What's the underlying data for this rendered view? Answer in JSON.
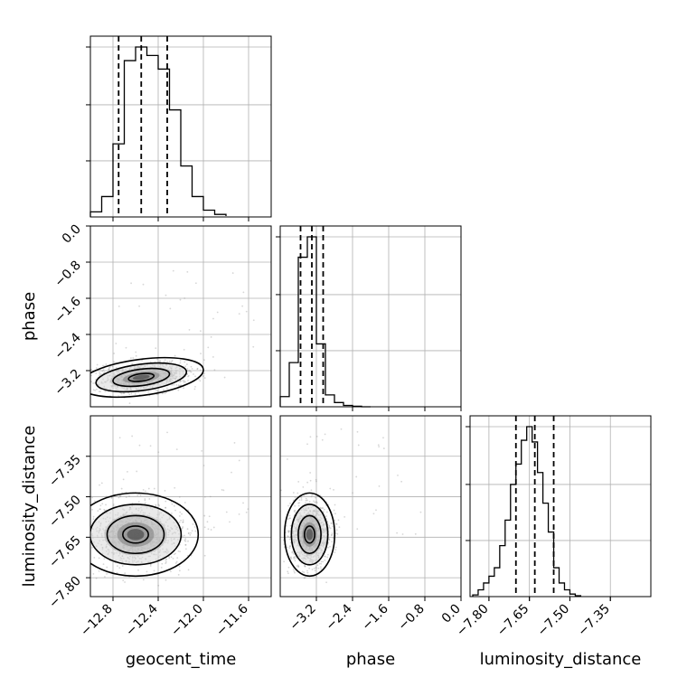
{
  "chart_data": {
    "type": "corner",
    "parameters": [
      {
        "name": "geocent_time",
        "range": [
          -13.0,
          -11.4
        ],
        "ticks": [
          "−12.8",
          "−12.4",
          "−12.0",
          "−11.6"
        ],
        "tick_values": [
          -12.8,
          -12.4,
          -12.0,
          -11.6
        ],
        "quantiles": [
          -12.75,
          -12.55,
          -12.32
        ],
        "hist_bins": [
          -13.0,
          -12.9,
          -12.8,
          -12.7,
          -12.6,
          -12.5,
          -12.4,
          -12.3,
          -12.2,
          -12.1,
          -12.0,
          -11.9,
          -11.8
        ],
        "hist_counts": [
          0.03,
          0.12,
          0.43,
          0.92,
          1.0,
          0.95,
          0.87,
          0.63,
          0.3,
          0.12,
          0.04,
          0.015,
          0.005
        ],
        "hist_label": "geocent_time"
      },
      {
        "name": "phase",
        "range": [
          -4.0,
          0.0
        ],
        "ticks": [
          "−3.2",
          "−2.4",
          "−1.6",
          "−0.8",
          "0.0"
        ],
        "tick_values": [
          -3.2,
          -2.4,
          -1.6,
          -0.8,
          0.0
        ],
        "y_ticks": [
          "0.0",
          "−0.8",
          "−1.6",
          "−2.4",
          "−3.2"
        ],
        "y_tick_values": [
          0.0,
          -0.8,
          -1.6,
          -2.4,
          -3.2
        ],
        "quantiles": [
          -3.55,
          -3.3,
          -3.05
        ],
        "hist_bins": [
          -4.0,
          -3.8,
          -3.6,
          -3.4,
          -3.2,
          -3.0,
          -2.8,
          -2.6,
          -2.4,
          -2.2,
          -2.0
        ],
        "hist_counts": [
          0.06,
          0.26,
          0.88,
          1.0,
          0.37,
          0.07,
          0.025,
          0.008,
          0.003,
          0.0
        ],
        "hist_label": "phase"
      },
      {
        "name": "luminosity_distance",
        "range": [
          -7.87,
          -7.2
        ],
        "ticks": [
          "−7.80",
          "−7.65",
          "−7.50",
          "−7.35"
        ],
        "tick_values": [
          -7.8,
          -7.65,
          -7.5,
          -7.35
        ],
        "y_ticks": [
          "−7.35",
          "−7.50",
          "−7.65",
          "−7.80"
        ],
        "y_tick_values": [
          -7.35,
          -7.5,
          -7.65,
          -7.8
        ],
        "quantiles": [
          -7.7,
          -7.63,
          -7.56
        ],
        "hist_bins": [
          -7.86,
          -7.84,
          -7.82,
          -7.8,
          -7.78,
          -7.76,
          -7.74,
          -7.72,
          -7.7,
          -7.68,
          -7.66,
          -7.64,
          -7.62,
          -7.6,
          -7.58,
          -7.56,
          -7.54,
          -7.52,
          -7.5,
          -7.48,
          -7.46
        ],
        "hist_counts": [
          0.01,
          0.04,
          0.08,
          0.12,
          0.17,
          0.3,
          0.45,
          0.66,
          0.78,
          0.92,
          1.0,
          0.91,
          0.73,
          0.55,
          0.38,
          0.17,
          0.08,
          0.04,
          0.015,
          0.005
        ],
        "hist_label": "luminosity_distance"
      }
    ],
    "pairs": [
      {
        "x": "geocent_time",
        "y": "phase",
        "center": [
          -12.55,
          -3.35
        ],
        "spread": [
          0.18,
          0.13
        ],
        "tilt": -0.25
      },
      {
        "x": "geocent_time",
        "y": "luminosity_distance",
        "center": [
          -12.6,
          -7.64
        ],
        "spread": [
          0.18,
          0.05
        ],
        "tilt": 0.0
      },
      {
        "x": "phase",
        "y": "luminosity_distance",
        "center": [
          -3.35,
          -7.64
        ],
        "spread": [
          0.18,
          0.05
        ],
        "tilt": 0.0
      }
    ],
    "grid": true
  }
}
